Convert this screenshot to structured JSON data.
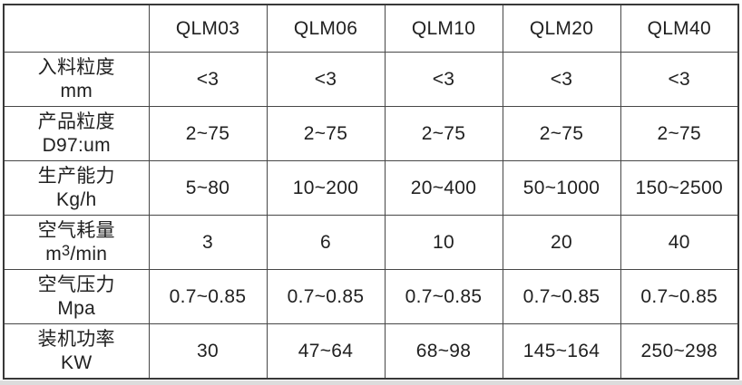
{
  "colors": {
    "background": "#ffffff",
    "outer_border": "#383838",
    "inner_border": "#474747",
    "text": "#212121",
    "photo_edge": "#dcdcdc"
  },
  "table": {
    "corner_label": "",
    "columns": [
      "QLM03",
      "QLM06",
      "QLM10",
      "QLM20",
      "QLM40"
    ],
    "rows": [
      {
        "label": "入料粒度",
        "unit": {
          "pre": "mm",
          "sup": "",
          "post": ""
        },
        "values": [
          "<3",
          "<3",
          "<3",
          "<3",
          "<3"
        ]
      },
      {
        "label": "产品粒度",
        "unit": {
          "pre": "D97:um",
          "sup": "",
          "post": ""
        },
        "values": [
          "2~75",
          "2~75",
          "2~75",
          "2~75",
          "2~75"
        ]
      },
      {
        "label": "生产能力",
        "unit": {
          "pre": "Kg/h",
          "sup": "",
          "post": ""
        },
        "values": [
          "5~80",
          "10~200",
          "20~400",
          "50~1000",
          "150~2500"
        ]
      },
      {
        "label": "空气耗量",
        "unit": {
          "pre": "m",
          "sup": "3",
          "post": "/min"
        },
        "values": [
          "3",
          "6",
          "10",
          "20",
          "40"
        ]
      },
      {
        "label": "空气压力",
        "unit": {
          "pre": "Mpa",
          "sup": "",
          "post": ""
        },
        "values": [
          "0.7~0.85",
          "0.7~0.85",
          "0.7~0.85",
          "0.7~0.85",
          "0.7~0.85"
        ]
      },
      {
        "label": "装机功率",
        "unit": {
          "pre": "KW",
          "sup": "",
          "post": ""
        },
        "values": [
          "30",
          "47~64",
          "68~98",
          "145~164",
          "250~298"
        ]
      }
    ]
  }
}
